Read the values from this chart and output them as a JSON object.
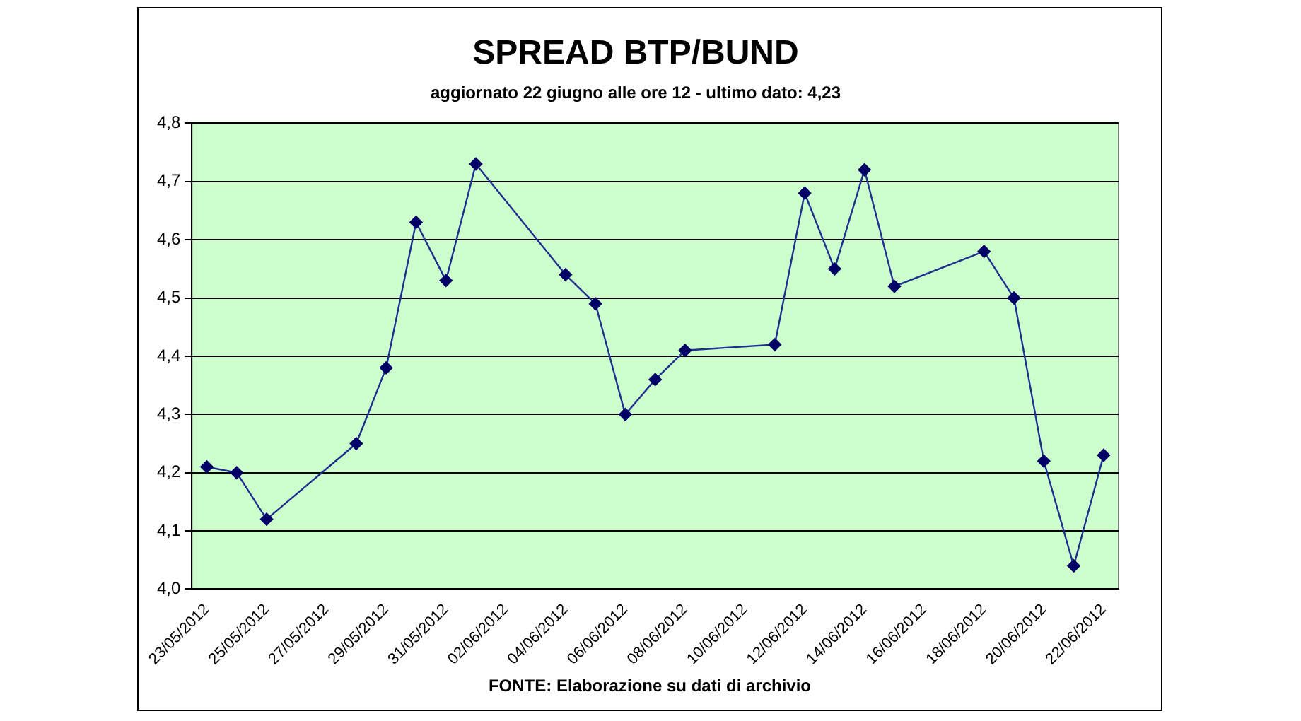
{
  "chart_data": {
    "type": "line",
    "title": "SPREAD BTP/BUND",
    "subtitle": "aggiornato 22 giugno alle ore 12 - ultimo dato: 4,23",
    "x": [
      "2012-05-23",
      "2012-05-24",
      "2012-05-25",
      "2012-05-28",
      "2012-05-29",
      "2012-05-30",
      "2012-05-31",
      "2012-06-01",
      "2012-06-04",
      "2012-06-05",
      "2012-06-06",
      "2012-06-07",
      "2012-06-08",
      "2012-06-11",
      "2012-06-12",
      "2012-06-13",
      "2012-06-14",
      "2012-06-15",
      "2012-06-18",
      "2012-06-19",
      "2012-06-20",
      "2012-06-21",
      "2012-06-22"
    ],
    "series": [
      {
        "color": "#1f2f8f",
        "values": [
          4.21,
          4.2,
          4.12,
          4.25,
          4.38,
          4.63,
          4.53,
          4.73,
          4.54,
          4.49,
          4.3,
          4.36,
          4.41,
          4.42,
          4.68,
          4.55,
          4.72,
          4.52,
          4.58,
          4.5,
          4.22,
          4.04,
          4.23
        ]
      }
    ],
    "xlim": [
      "2012-05-22T12:00",
      "2012-06-22T12:00"
    ],
    "xticks": [
      {
        "value": "2012-05-23",
        "label": "23/05/2012"
      },
      {
        "value": "2012-05-25",
        "label": "25/05/2012"
      },
      {
        "value": "2012-05-27",
        "label": "27/05/2012"
      },
      {
        "value": "2012-05-29",
        "label": "29/05/2012"
      },
      {
        "value": "2012-05-31",
        "label": "31/05/2012"
      },
      {
        "value": "2012-06-02",
        "label": "02/06/2012"
      },
      {
        "value": "2012-06-04",
        "label": "04/06/2012"
      },
      {
        "value": "2012-06-06",
        "label": "06/06/2012"
      },
      {
        "value": "2012-06-08",
        "label": "08/06/2012"
      },
      {
        "value": "2012-06-10",
        "label": "10/06/2012"
      },
      {
        "value": "2012-06-12",
        "label": "12/06/2012"
      },
      {
        "value": "2012-06-14",
        "label": "14/06/2012"
      },
      {
        "value": "2012-06-16",
        "label": "16/06/2012"
      },
      {
        "value": "2012-06-18",
        "label": "18/06/2012"
      },
      {
        "value": "2012-06-20",
        "label": "20/06/2012"
      },
      {
        "value": "2012-06-22",
        "label": "22/06/2012"
      }
    ],
    "ylim": [
      4.0,
      4.8
    ],
    "yticks": [
      {
        "value": 4.0,
        "label": "4,0"
      },
      {
        "value": 4.1,
        "label": "4,1"
      },
      {
        "value": 4.2,
        "label": "4,2"
      },
      {
        "value": 4.3,
        "label": "4,3"
      },
      {
        "value": 4.4,
        "label": "4,4"
      },
      {
        "value": 4.5,
        "label": "4,5"
      },
      {
        "value": 4.6,
        "label": "4,6"
      },
      {
        "value": 4.7,
        "label": "4,7"
      },
      {
        "value": 4.8,
        "label": "4,8"
      }
    ],
    "grid": "y",
    "legend": false,
    "marker": "diamond",
    "line_style": "solid",
    "annotations": [
      "FONTE: Elaborazione su dati di archivio"
    ]
  }
}
